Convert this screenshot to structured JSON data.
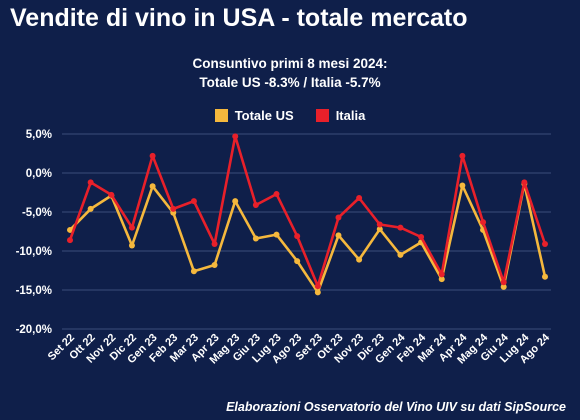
{
  "title": "Vendite di vino in USA - totale mercato",
  "subtitle_line1": "Consuntivo primi 8 mesi 2024:",
  "subtitle_line2": "Totale US -8.3% / Italia -5.7%",
  "source": "Elaborazioni Osservatorio del Vino UIV su dati SipSource",
  "colors": {
    "background": "#0f1f4a",
    "totale_us": "#f5b83d",
    "italia": "#e8202a",
    "grid": "#3b4d7a"
  },
  "chart_data": {
    "type": "line",
    "title": "Vendite di vino in USA - totale mercato",
    "categories": [
      "Set 22",
      "Ott 22",
      "Nov 22",
      "Dic 22",
      "Gen 23",
      "Feb 23",
      "Mar 23",
      "Apr 23",
      "Mag 23",
      "Giu 23",
      "Lug 23",
      "Ago 23",
      "Set 23",
      "Ott 23",
      "Nov 23",
      "Dic 23",
      "Gen 24",
      "Feb 24",
      "Mar 24",
      "Apr 24",
      "Mag 24",
      "Giu 24",
      "Lug 24",
      "Ago 24"
    ],
    "series": [
      {
        "name": "Totale US",
        "color": "#f5b83d",
        "values": [
          -7.3,
          -4.6,
          -2.9,
          -9.3,
          -1.7,
          -5.1,
          -12.6,
          -11.8,
          -3.6,
          -8.4,
          -7.9,
          -11.3,
          -15.3,
          -8.0,
          -11.1,
          -7.2,
          -10.5,
          -8.9,
          -13.6,
          -1.6,
          -7.3,
          -14.6,
          -1.4,
          -13.3
        ]
      },
      {
        "name": "Italia",
        "color": "#e8202a",
        "values": [
          -8.6,
          -1.2,
          -2.8,
          -7.0,
          2.2,
          -4.6,
          -3.6,
          -9.1,
          4.7,
          -4.1,
          -2.7,
          -8.1,
          -14.5,
          -5.7,
          -3.2,
          -6.6,
          -7.0,
          -8.2,
          -13.0,
          2.2,
          -6.3,
          -14.0,
          -1.2,
          -9.1
        ]
      }
    ],
    "yticks": [
      "5,0%",
      "0,0%",
      "-5,0%",
      "-10,0%",
      "-15,0%",
      "-20,0%"
    ],
    "ytick_values": [
      5,
      0,
      -5,
      -10,
      -15,
      -20
    ],
    "ylim": [
      -20,
      5
    ],
    "legend_position": "top-center",
    "grid": "horizontal"
  }
}
